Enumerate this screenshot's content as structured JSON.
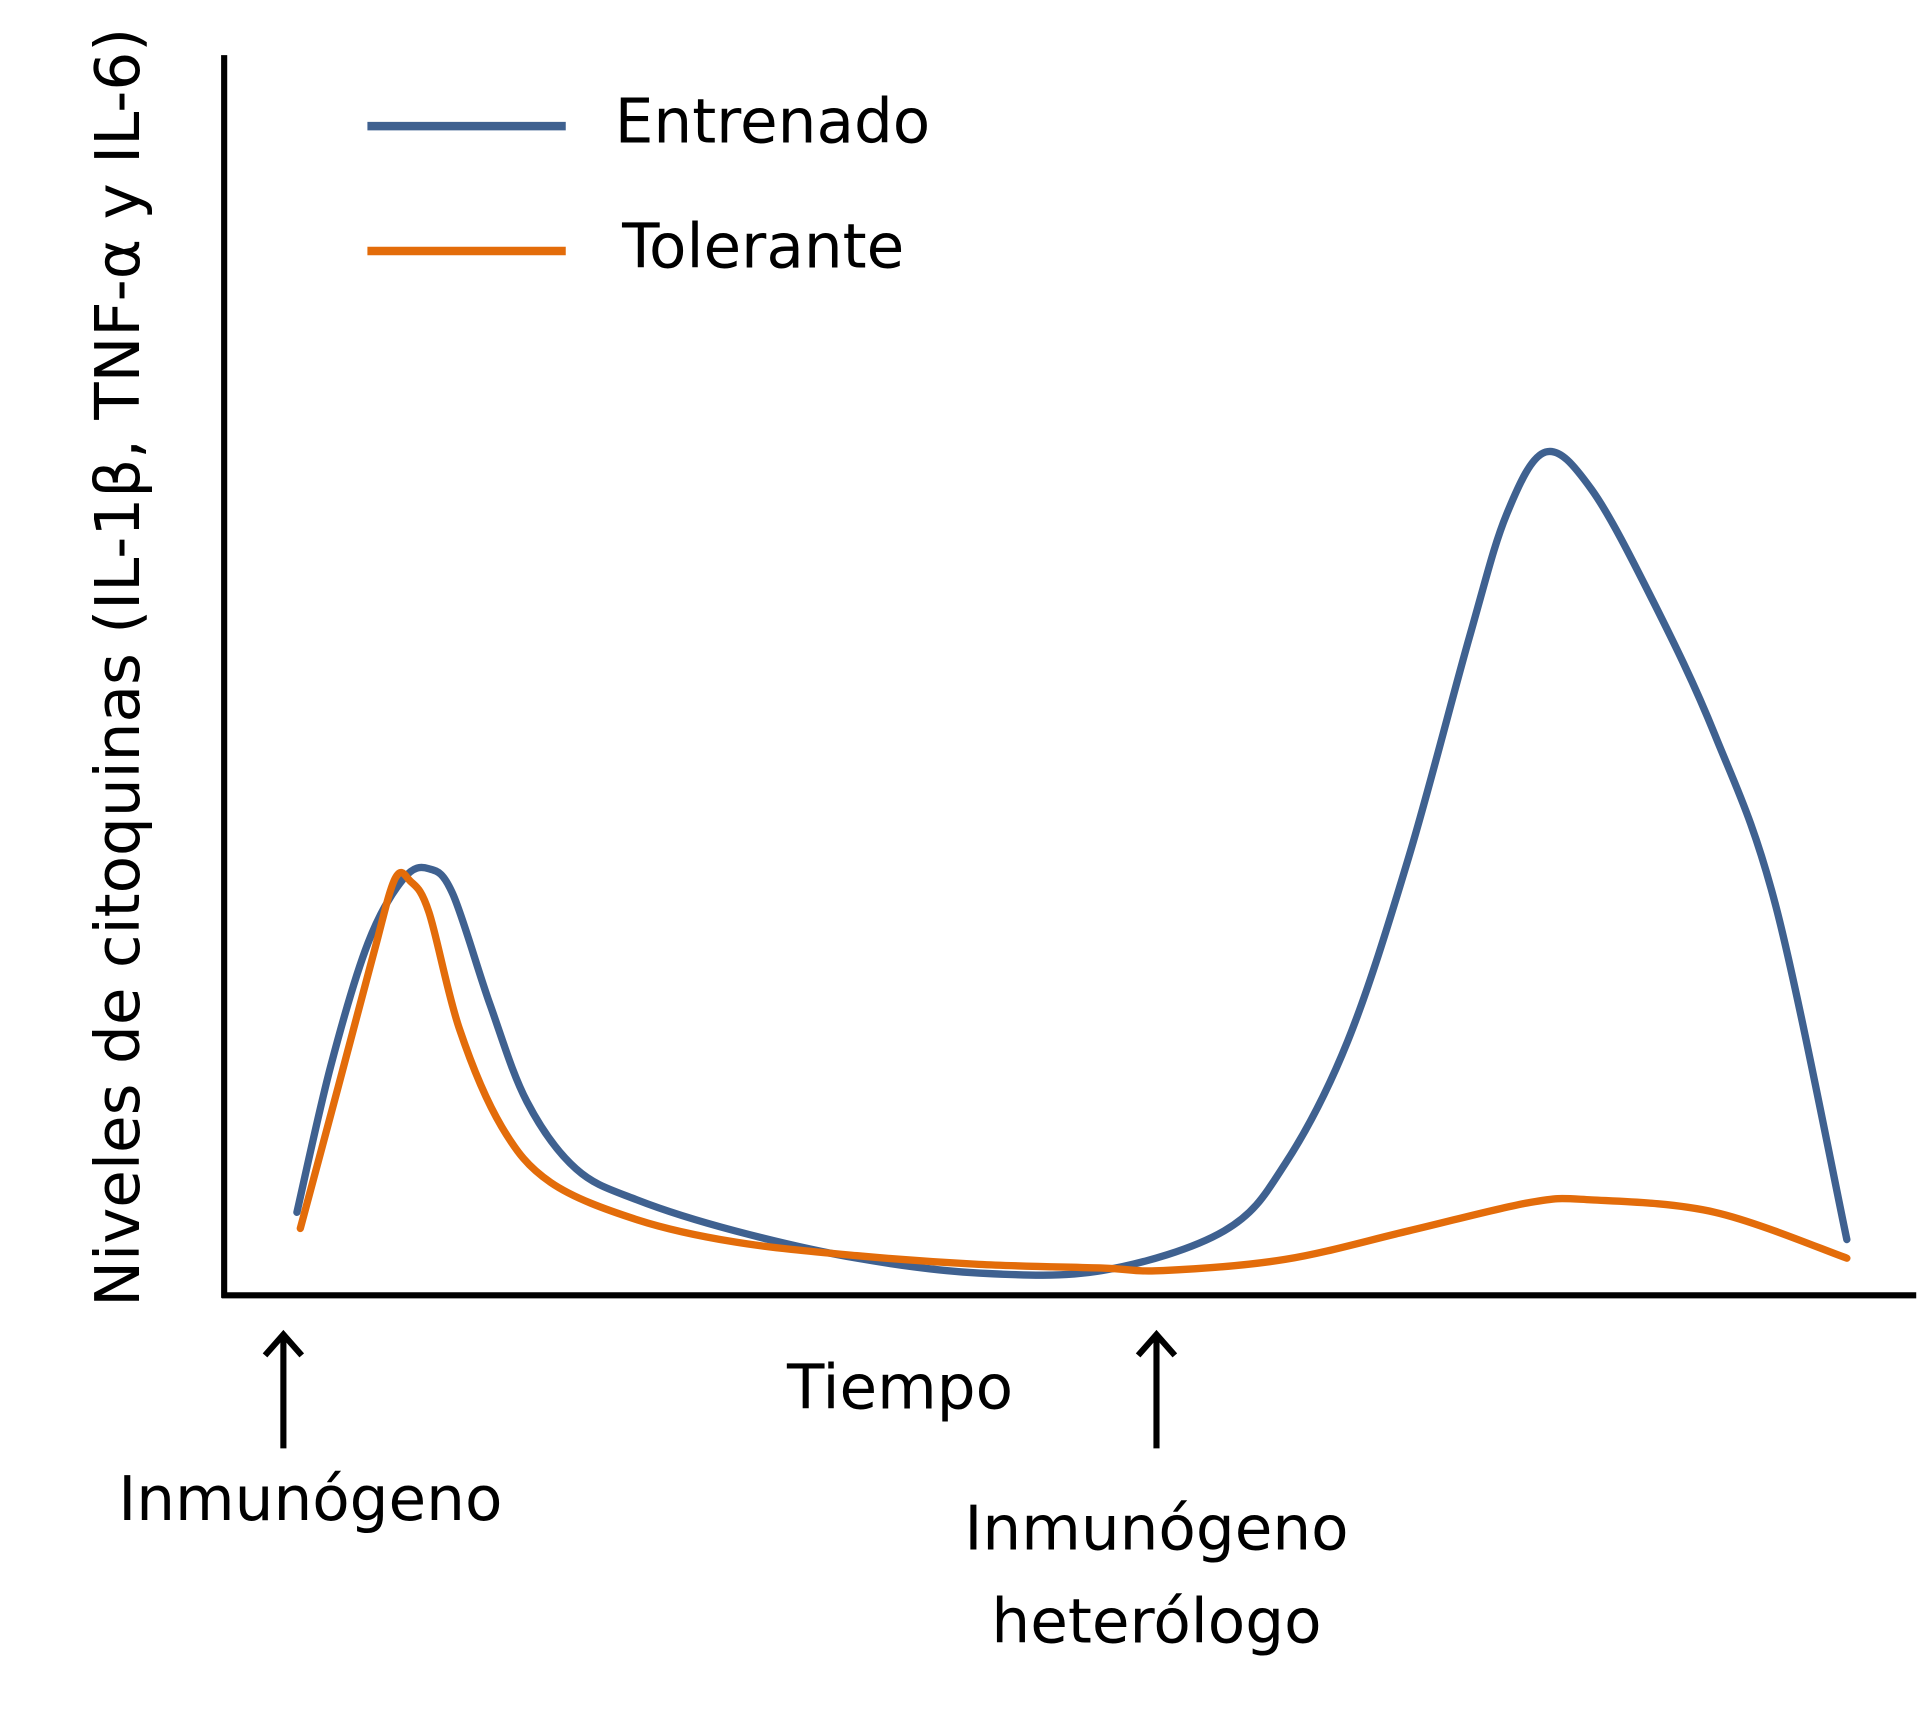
{
  "chart_data": {
    "type": "line",
    "y_label": "Niveles de citoquinas (IL-1β, TNF-α y IL-6)",
    "x_label": "Tiempo",
    "xlim": [
      0,
      100
    ],
    "ylim": [
      0,
      100
    ],
    "legend": "top-left",
    "series": [
      {
        "name": "Entrenado",
        "color": "#3f6190",
        "x": [
          4.3,
          6.3,
          8.5,
          10.6,
          12.1,
          13.5,
          15.7,
          17.9,
          20.8,
          24.4,
          30.2,
          37.4,
          44.6,
          51.9,
          59.1,
          62.7,
          66.4,
          70.0,
          73.6,
          75.8,
          78.1,
          80.8,
          84.4,
          88.1,
          91.7,
          95.9
        ],
        "values": [
          6.7,
          18.5,
          28.4,
          33.6,
          34.4,
          32.4,
          23.5,
          15.6,
          10.2,
          7.7,
          5.2,
          3.0,
          1.8,
          2.0,
          5.2,
          10.6,
          20.5,
          35.3,
          53.1,
          63.0,
          68.0,
          65.0,
          56.1,
          45.2,
          31.4,
          4.5
        ]
      },
      {
        "name": "Tolerante",
        "color": "#e36c0a",
        "x": [
          4.5,
          6.7,
          8.8,
          10.1,
          11.0,
          12.1,
          13.9,
          16.4,
          19.3,
          24.4,
          30.2,
          37.4,
          44.6,
          51.9,
          55.5,
          62.7,
          70.0,
          77.2,
          80.8,
          88.1,
          95.9
        ],
        "values": [
          5.4,
          16.6,
          27.4,
          33.6,
          33.4,
          30.9,
          21.5,
          13.6,
          9.1,
          6.1,
          4.3,
          3.2,
          2.5,
          2.2,
          2.0,
          2.9,
          5.2,
          7.5,
          7.7,
          6.7,
          3.0
        ]
      }
    ],
    "annotations": [
      {
        "x": 3.5,
        "text": [
          "Inmunógeno"
        ]
      },
      {
        "x": 55.1,
        "text": [
          "Inmunógeno",
          "heterólogo"
        ]
      }
    ]
  }
}
